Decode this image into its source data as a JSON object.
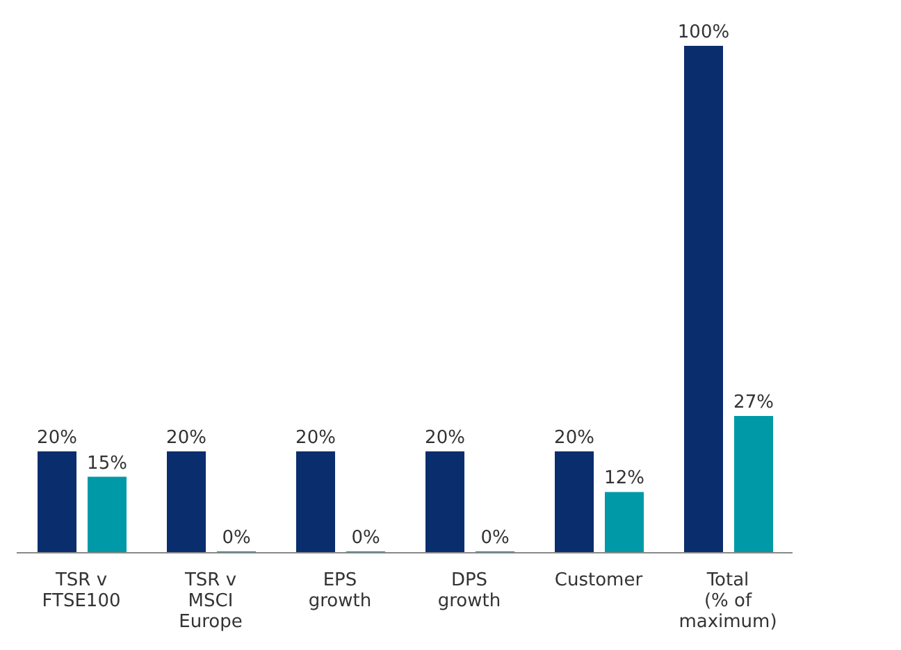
{
  "chart_data": {
    "type": "bar",
    "categories": [
      "TSR v FTSE100",
      "TSR v MSCI Europe",
      "EPS growth",
      "DPS growth",
      "Customer",
      "Total (% of maximum)"
    ],
    "series": [
      {
        "color": "#0a2d6e",
        "values": [
          20,
          20,
          20,
          20,
          20,
          100
        ],
        "value_labels": [
          "20%",
          "20%",
          "20%",
          "20%",
          "20%",
          "100%"
        ]
      },
      {
        "color": "#0099a8",
        "values": [
          15,
          0,
          0,
          0,
          12,
          27
        ],
        "value_labels": [
          "15%",
          "0%",
          "0%",
          "0%",
          "12%",
          "27%"
        ]
      }
    ],
    "grid": false,
    "legend": false,
    "tick_labels": "x"
  }
}
